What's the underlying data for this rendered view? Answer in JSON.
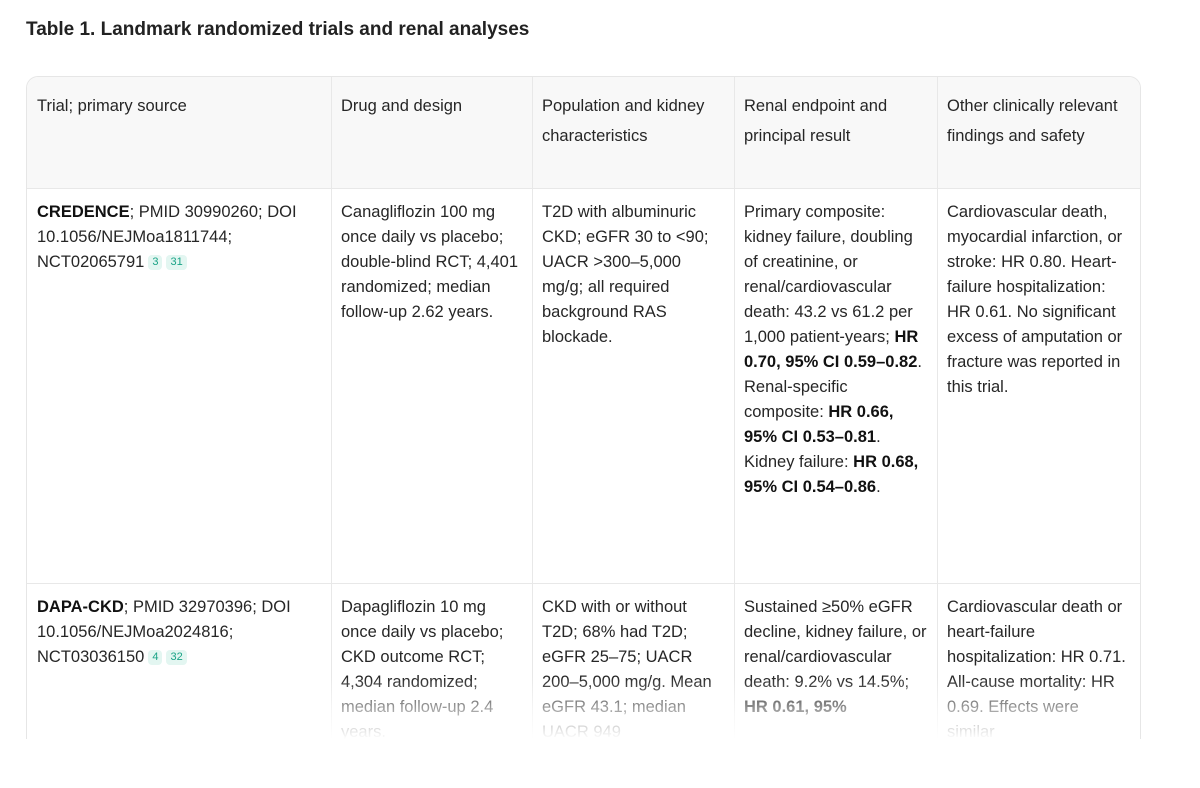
{
  "caption": "Table 1. Landmark randomized trials and renal analyses",
  "headers": [
    "Trial; primary source",
    "Drug and design",
    "Population and kidney characteristics",
    "Renal endpoint and principal result",
    "Other clinically relevant findings and safety"
  ],
  "rows": [
    {
      "trial": {
        "name": "CREDENCE",
        "rest": "; PMID 30990260; DOI 10.1056/NEJMoa1811744; NCT02065791",
        "refs": [
          "3",
          "31"
        ]
      },
      "design": "Canagliflozin 100 mg once daily vs placebo; double-blind RCT; 4,401 randomized; median follow-up 2.62 years.",
      "population": "T2D with albuminuric CKD; eGFR 30 to <90; UACR >300–5,000 mg/g; all required background RAS blockade.",
      "renal": {
        "p1": "Primary composite: kidney failure, doubling of creatinine, or renal/cardiovascular death: 43.2 vs 61.2 per 1,000 patient-years; ",
        "b1": "HR 0.70, 95% CI 0.59–0.82",
        "p2": ". Renal-specific composite: ",
        "b2": "HR 0.66, 95% CI 0.53–0.81",
        "p3": ". Kidney failure: ",
        "b3": "HR 0.68, 95% CI 0.54–0.86",
        "p4": "."
      },
      "other": "Cardiovascular death, myocardial infarction, or stroke: HR 0.80. Heart-failure hospitalization: HR 0.61. No significant excess of amputation or fracture was reported in this trial."
    },
    {
      "trial": {
        "name": "DAPA-CKD",
        "rest": "; PMID 32970396; DOI 10.1056/NEJMoa2024816; NCT03036150",
        "refs": [
          "4",
          "32"
        ]
      },
      "design": "Dapagliflozin 10 mg once daily vs placebo; CKD outcome RCT; 4,304 randomized; median follow-up 2.4 years.",
      "population": "CKD with or without T2D; 68% had T2D; eGFR 25–75; UACR 200–5,000 mg/g. Mean eGFR 43.1; median UACR 949",
      "renal": {
        "p1": "Sustained ≥50% eGFR decline, kidney failure, or renal/cardiovascular death: 9.2% vs 14.5%; ",
        "b1": "HR 0.61, 95%"
      },
      "other": "Cardiovascular death or heart-failure hospitalization: HR 0.71. All-cause mortality: HR 0.69. Effects were similar"
    }
  ]
}
